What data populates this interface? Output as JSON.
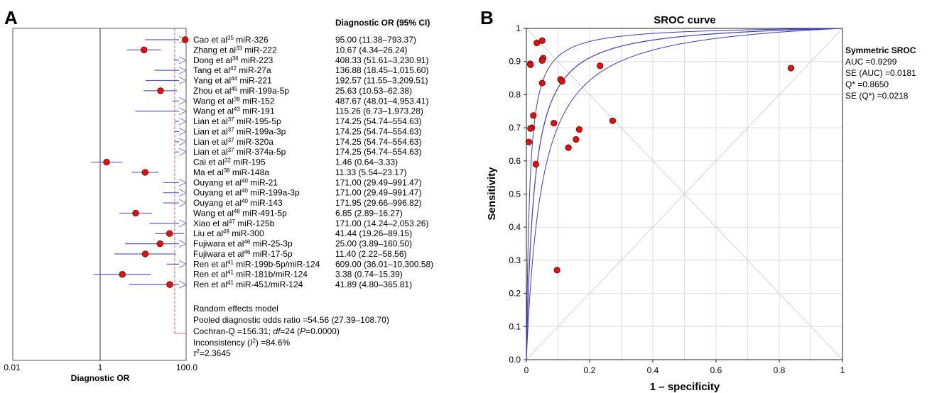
{
  "panel_a": {
    "label": "A",
    "header": "Diagnostic OR (95% CI)",
    "xlabel": "Diagnostic OR",
    "xticks": [
      "0.01",
      "1",
      "100.0"
    ],
    "pooled_line_value": 54.56,
    "studies": [
      {
        "author": "Cao et al",
        "ref": "35",
        "mirna": "miR-326",
        "text": "95.00 (11.38–793.37)",
        "or": 95.0,
        "lo": 11.38,
        "hi": 793.37
      },
      {
        "author": "Zhang et al",
        "ref": "33",
        "mirna": "miR-222",
        "text": "10.67 (4.34–26.24)",
        "or": 10.67,
        "lo": 4.34,
        "hi": 26.24
      },
      {
        "author": "Dong et al",
        "ref": "36",
        "mirna": "miR-223",
        "text": "408.33 (51.61–3,230.91)",
        "or": 408.33,
        "lo": 51.61,
        "hi": 3230.91
      },
      {
        "author": "Tang et al",
        "ref": "42",
        "mirna": "miR-27a",
        "text": "136.88 (18.45–1,015.60)",
        "or": 136.88,
        "lo": 18.45,
        "hi": 1015.6
      },
      {
        "author": "Yang et al",
        "ref": "44",
        "mirna": "miR-221",
        "text": "192.57 (11.55–3,209.51)",
        "or": 192.57,
        "lo": 11.55,
        "hi": 3209.51
      },
      {
        "author": "Zhou et al",
        "ref": "45",
        "mirna": "miR-199a-5p",
        "text": "25.63 (10.53–62.38)",
        "or": 25.63,
        "lo": 10.53,
        "hi": 62.38
      },
      {
        "author": "Wang et al",
        "ref": "39",
        "mirna": "miR-152",
        "text": "487.67 (48.01–4,953.41)",
        "or": 487.67,
        "lo": 48.01,
        "hi": 4953.41
      },
      {
        "author": "Wang et al",
        "ref": "43",
        "mirna": "miR-191",
        "text": "115.26 (6.73–1,973.28)",
        "or": 115.26,
        "lo": 6.73,
        "hi": 1973.28
      },
      {
        "author": "Lian et al",
        "ref": "37",
        "mirna": "miR-195-5p",
        "text": "174.25 (54.74–554.63)",
        "or": 174.25,
        "lo": 54.74,
        "hi": 554.63
      },
      {
        "author": "Lian et al",
        "ref": "37",
        "mirna": "miR-199a-3p",
        "text": "174.25 (54.74–554.63)",
        "or": 174.25,
        "lo": 54.74,
        "hi": 554.63
      },
      {
        "author": "Lian et al",
        "ref": "37",
        "mirna": "miR-320a",
        "text": "174.25 (54.74–554.63)",
        "or": 174.25,
        "lo": 54.74,
        "hi": 554.63
      },
      {
        "author": "Lian et al",
        "ref": "37",
        "mirna": "miR-374a-5p",
        "text": "174.25 (54.74–554.63)",
        "or": 174.25,
        "lo": 54.74,
        "hi": 554.63
      },
      {
        "author": "Cai et al",
        "ref": "32",
        "mirna": "miR-195",
        "text": "1.46 (0.64–3.33)",
        "or": 1.46,
        "lo": 0.64,
        "hi": 3.33
      },
      {
        "author": "Ma et al",
        "ref": "38",
        "mirna": "miR-148a",
        "text": "11.33 (5.54–23.17)",
        "or": 11.33,
        "lo": 5.54,
        "hi": 23.17
      },
      {
        "author": "Ouyang et al",
        "ref": "40",
        "mirna": "miR-21",
        "text": "171.00 (29.49–991.47)",
        "or": 171.0,
        "lo": 29.49,
        "hi": 991.47
      },
      {
        "author": "Ouyang et al",
        "ref": "40",
        "mirna": "miR-199a-3p",
        "text": "171.00 (29.49–991.47)",
        "or": 171.0,
        "lo": 29.49,
        "hi": 991.47
      },
      {
        "author": "Ouyang et al",
        "ref": "40",
        "mirna": "miR-143",
        "text": "171.95 (29.66–996.82)",
        "or": 171.95,
        "lo": 29.66,
        "hi": 996.82
      },
      {
        "author": "Wang et al",
        "ref": "48",
        "mirna": "miR-491-5p",
        "text": "6.85 (2.89–16.27)",
        "or": 6.85,
        "lo": 2.89,
        "hi": 16.27
      },
      {
        "author": "Xiao et al",
        "ref": "47",
        "mirna": "miR-125b",
        "text": "171.00 (14.24–2,053.26)",
        "or": 171.0,
        "lo": 14.24,
        "hi": 2053.26
      },
      {
        "author": "Liu et al",
        "ref": "49",
        "mirna": "miR-300",
        "text": "41.44 (19.26–89.15)",
        "or": 41.44,
        "lo": 19.26,
        "hi": 89.15
      },
      {
        "author": "Fujiwara et al",
        "ref": "46",
        "mirna": "miR-25-3p",
        "text": "25.00 (3.89–160.50)",
        "or": 25.0,
        "lo": 3.89,
        "hi": 160.5
      },
      {
        "author": "Fujiwara et al",
        "ref": "46",
        "mirna": "miR-17-5p",
        "text": "11.40 (2.22–58.56)",
        "or": 11.4,
        "lo": 2.22,
        "hi": 58.56
      },
      {
        "author": "Ren et al",
        "ref": "41",
        "mirna": "miR-199b-5p/miR-124",
        "text": "609.00 (36.01–10,300.58)",
        "or": 609.0,
        "lo": 36.01,
        "hi": 10300.58
      },
      {
        "author": "Ren et al",
        "ref": "41",
        "mirna": "miR-181b/miR-124",
        "text": "3.38 (0.74–15.39)",
        "or": 3.38,
        "lo": 0.74,
        "hi": 15.39
      },
      {
        "author": "Ren et al",
        "ref": "41",
        "mirna": "miR-451/miR-124",
        "text": "41.89 (4.80–365.81)",
        "or": 41.89,
        "lo": 4.8,
        "hi": 365.81
      }
    ],
    "summary": {
      "model": "Random effects model",
      "pooled": "Pooled diagnostic odds ratio =54.56 (27.39–108.70)",
      "cochran_prefix": "Cochran-Q =156.31; ",
      "cochran_df_label": "df",
      "cochran_suffix": "=24 (",
      "cochran_p_label": "P",
      "cochran_end": "=0.0000)",
      "inconsistency_prefix": "Inconsistency (",
      "inconsistency_i": "I",
      "inconsistency_sup": "2",
      "inconsistency_suffix": ") =84.6%",
      "tau_symbol": "τ",
      "tau_sup": "2",
      "tau_value": "=2.3645"
    }
  },
  "panel_b": {
    "label": "B",
    "title": "SROC curve",
    "xlabel": "1 – specificity",
    "ylabel": "Sensitivity",
    "xticks": [
      "0",
      "0.2",
      "0.4",
      "0.6",
      "0.8",
      "1"
    ],
    "yticks": [
      "0.0",
      "0.1",
      "0.2",
      "0.3",
      "0.4",
      "0.5",
      "0.6",
      "0.7",
      "0.8",
      "0.9",
      "1"
    ],
    "stats": {
      "heading": "Symmetric SROC",
      "auc": "AUC =0.9299",
      "se_auc": "SE (AUC) =0.0181",
      "q": "Q* =0.8650",
      "se_q": "SE (Q*) =0.0218"
    }
  },
  "chart_data": [
    {
      "type": "forest",
      "title": "",
      "xlabel": "Diagnostic OR",
      "xscale": "log",
      "xlim": [
        0.01,
        100
      ],
      "categories": [
        "Cao et al miR-326",
        "Zhang et al miR-222",
        "Dong et al miR-223",
        "Tang et al miR-27a",
        "Yang et al miR-221",
        "Zhou et al miR-199a-5p",
        "Wang et al miR-152",
        "Wang et al miR-191",
        "Lian et al miR-195-5p",
        "Lian et al miR-199a-3p",
        "Lian et al miR-320a",
        "Lian et al miR-374a-5p",
        "Cai et al miR-195",
        "Ma et al miR-148a",
        "Ouyang et al miR-21",
        "Ouyang et al miR-199a-3p",
        "Ouyang et al miR-143",
        "Wang et al miR-491-5p",
        "Xiao et al miR-125b",
        "Liu et al miR-300",
        "Fujiwara et al miR-25-3p",
        "Fujiwara et al miR-17-5p",
        "Ren et al miR-199b-5p/miR-124",
        "Ren et al miR-181b/miR-124",
        "Ren et al miR-451/miR-124"
      ],
      "values": [
        95.0,
        10.67,
        408.33,
        136.88,
        192.57,
        25.63,
        487.67,
        115.26,
        174.25,
        174.25,
        174.25,
        174.25,
        1.46,
        11.33,
        171.0,
        171.0,
        171.95,
        6.85,
        171.0,
        41.44,
        25.0,
        11.4,
        609.0,
        3.38,
        41.89
      ],
      "pooled": {
        "value": 54.56,
        "ci": [
          27.39,
          108.7
        ]
      },
      "grid": false
    },
    {
      "type": "scatter",
      "title": "SROC curve",
      "xlabel": "1 – specificity",
      "ylabel": "Sensitivity",
      "xlim": [
        0,
        1
      ],
      "ylim": [
        0,
        1
      ],
      "grid": true,
      "legend": "right",
      "points": [
        [
          0.05,
          0.963
        ],
        [
          0.033,
          0.956
        ],
        [
          0.012,
          0.893
        ],
        [
          0.013,
          0.89
        ],
        [
          0.05,
          0.905
        ],
        [
          0.053,
          0.91
        ],
        [
          0.05,
          0.903
        ],
        [
          0.233,
          0.887
        ],
        [
          0.837,
          0.88
        ],
        [
          0.108,
          0.846
        ],
        [
          0.113,
          0.84
        ],
        [
          0.05,
          0.835
        ],
        [
          0.022,
          0.737
        ],
        [
          0.087,
          0.714
        ],
        [
          0.273,
          0.721
        ],
        [
          0.017,
          0.7
        ],
        [
          0.013,
          0.698
        ],
        [
          0.167,
          0.695
        ],
        [
          0.157,
          0.665
        ],
        [
          0.133,
          0.64
        ],
        [
          0.008,
          0.657
        ],
        [
          0.03,
          0.59
        ],
        [
          0.097,
          0.27
        ]
      ],
      "auc": 0.9299,
      "se_auc": 0.0181,
      "q_star": 0.865,
      "se_q_star": 0.0218,
      "colors": {
        "points": "#e01010",
        "curve": "#3b3bc4",
        "pooled_line": "#e08080"
      }
    }
  ]
}
